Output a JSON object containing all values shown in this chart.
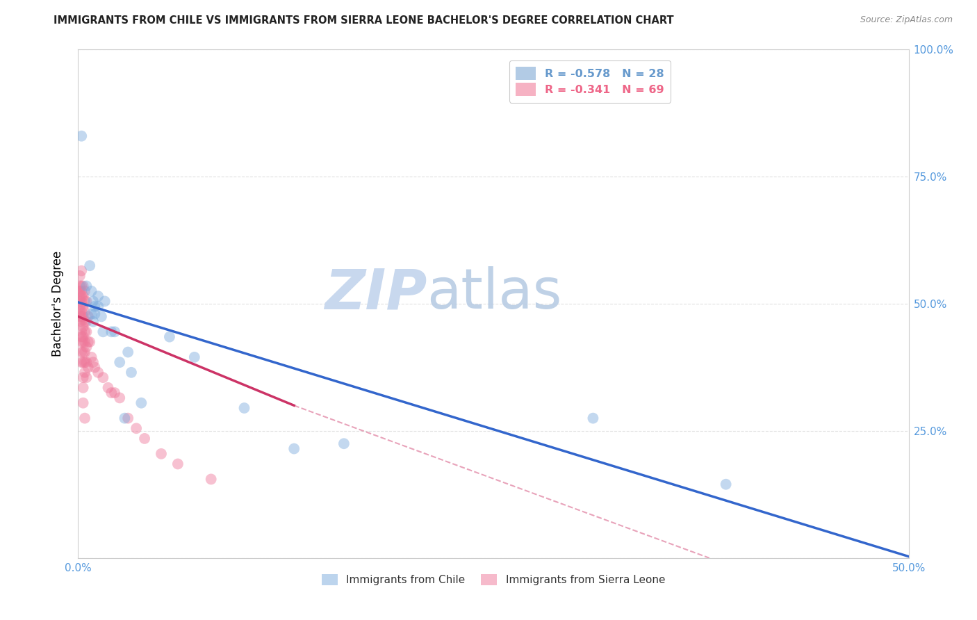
{
  "title": "IMMIGRANTS FROM CHILE VS IMMIGRANTS FROM SIERRA LEONE BACHELOR'S DEGREE CORRELATION CHART",
  "source": "Source: ZipAtlas.com",
  "ylabel": "Bachelor's Degree",
  "xlim": [
    0,
    0.5
  ],
  "ylim": [
    0,
    1.0
  ],
  "xticks": [
    0.0,
    0.1,
    0.2,
    0.3,
    0.4,
    0.5
  ],
  "xtick_labels": [
    "0.0%",
    "",
    "",
    "",
    "",
    "50.0%"
  ],
  "yticks": [
    0.0,
    0.25,
    0.5,
    0.75,
    1.0
  ],
  "ytick_labels_right": [
    "",
    "25.0%",
    "50.0%",
    "75.0%",
    "100.0%"
  ],
  "legend_entries": [
    {
      "label": "R = -0.578   N = 28",
      "color": "#6699cc"
    },
    {
      "label": "R = -0.341   N = 69",
      "color": "#ee6688"
    }
  ],
  "chile_color": "#7aaadd",
  "sierra_leone_color": "#ee7799",
  "chile_points": [
    [
      0.002,
      0.83
    ],
    [
      0.005,
      0.535
    ],
    [
      0.007,
      0.575
    ],
    [
      0.008,
      0.525
    ],
    [
      0.008,
      0.48
    ],
    [
      0.009,
      0.505
    ],
    [
      0.009,
      0.465
    ],
    [
      0.01,
      0.495
    ],
    [
      0.01,
      0.48
    ],
    [
      0.012,
      0.515
    ],
    [
      0.012,
      0.495
    ],
    [
      0.014,
      0.475
    ],
    [
      0.015,
      0.445
    ],
    [
      0.016,
      0.505
    ],
    [
      0.02,
      0.445
    ],
    [
      0.022,
      0.445
    ],
    [
      0.025,
      0.385
    ],
    [
      0.028,
      0.275
    ],
    [
      0.03,
      0.405
    ],
    [
      0.032,
      0.365
    ],
    [
      0.038,
      0.305
    ],
    [
      0.055,
      0.435
    ],
    [
      0.07,
      0.395
    ],
    [
      0.1,
      0.295
    ],
    [
      0.13,
      0.215
    ],
    [
      0.16,
      0.225
    ],
    [
      0.31,
      0.275
    ],
    [
      0.39,
      0.145
    ]
  ],
  "sierra_leone_points": [
    [
      0.001,
      0.555
    ],
    [
      0.001,
      0.535
    ],
    [
      0.001,
      0.525
    ],
    [
      0.001,
      0.515
    ],
    [
      0.001,
      0.505
    ],
    [
      0.001,
      0.495
    ],
    [
      0.001,
      0.485
    ],
    [
      0.001,
      0.475
    ],
    [
      0.001,
      0.465
    ],
    [
      0.002,
      0.565
    ],
    [
      0.002,
      0.535
    ],
    [
      0.002,
      0.525
    ],
    [
      0.002,
      0.515
    ],
    [
      0.002,
      0.505
    ],
    [
      0.002,
      0.485
    ],
    [
      0.002,
      0.475
    ],
    [
      0.002,
      0.465
    ],
    [
      0.002,
      0.445
    ],
    [
      0.002,
      0.435
    ],
    [
      0.002,
      0.425
    ],
    [
      0.002,
      0.405
    ],
    [
      0.002,
      0.385
    ],
    [
      0.003,
      0.535
    ],
    [
      0.003,
      0.515
    ],
    [
      0.003,
      0.495
    ],
    [
      0.003,
      0.475
    ],
    [
      0.003,
      0.455
    ],
    [
      0.003,
      0.435
    ],
    [
      0.003,
      0.425
    ],
    [
      0.003,
      0.405
    ],
    [
      0.003,
      0.385
    ],
    [
      0.003,
      0.355
    ],
    [
      0.003,
      0.335
    ],
    [
      0.003,
      0.305
    ],
    [
      0.004,
      0.525
    ],
    [
      0.004,
      0.505
    ],
    [
      0.004,
      0.485
    ],
    [
      0.004,
      0.465
    ],
    [
      0.004,
      0.445
    ],
    [
      0.004,
      0.425
    ],
    [
      0.004,
      0.405
    ],
    [
      0.004,
      0.385
    ],
    [
      0.004,
      0.365
    ],
    [
      0.004,
      0.275
    ],
    [
      0.005,
      0.505
    ],
    [
      0.005,
      0.465
    ],
    [
      0.005,
      0.445
    ],
    [
      0.005,
      0.415
    ],
    [
      0.005,
      0.385
    ],
    [
      0.005,
      0.355
    ],
    [
      0.006,
      0.475
    ],
    [
      0.006,
      0.425
    ],
    [
      0.006,
      0.375
    ],
    [
      0.007,
      0.425
    ],
    [
      0.008,
      0.395
    ],
    [
      0.009,
      0.385
    ],
    [
      0.01,
      0.375
    ],
    [
      0.012,
      0.365
    ],
    [
      0.015,
      0.355
    ],
    [
      0.018,
      0.335
    ],
    [
      0.02,
      0.325
    ],
    [
      0.022,
      0.325
    ],
    [
      0.025,
      0.315
    ],
    [
      0.03,
      0.275
    ],
    [
      0.035,
      0.255
    ],
    [
      0.04,
      0.235
    ],
    [
      0.05,
      0.205
    ],
    [
      0.06,
      0.185
    ],
    [
      0.08,
      0.155
    ]
  ],
  "chile_regression": {
    "x_start": 0.0,
    "y_start": 0.503,
    "x_end": 0.5,
    "y_end": 0.003
  },
  "sierra_leone_regression_solid": {
    "x_start": 0.0,
    "y_start": 0.475,
    "x_end": 0.13,
    "y_end": 0.3
  },
  "sierra_leone_regression_dashed": {
    "x_start": 0.13,
    "y_start": 0.3,
    "x_end": 0.38,
    "y_end": 0.0
  },
  "watermark_zip": "ZIP",
  "watermark_atlas": "atlas",
  "watermark_color": "#c8d8ee",
  "background_color": "#ffffff",
  "grid_color": "#dddddd",
  "tick_color": "#5599dd",
  "legend_box_color": "#dddddd"
}
